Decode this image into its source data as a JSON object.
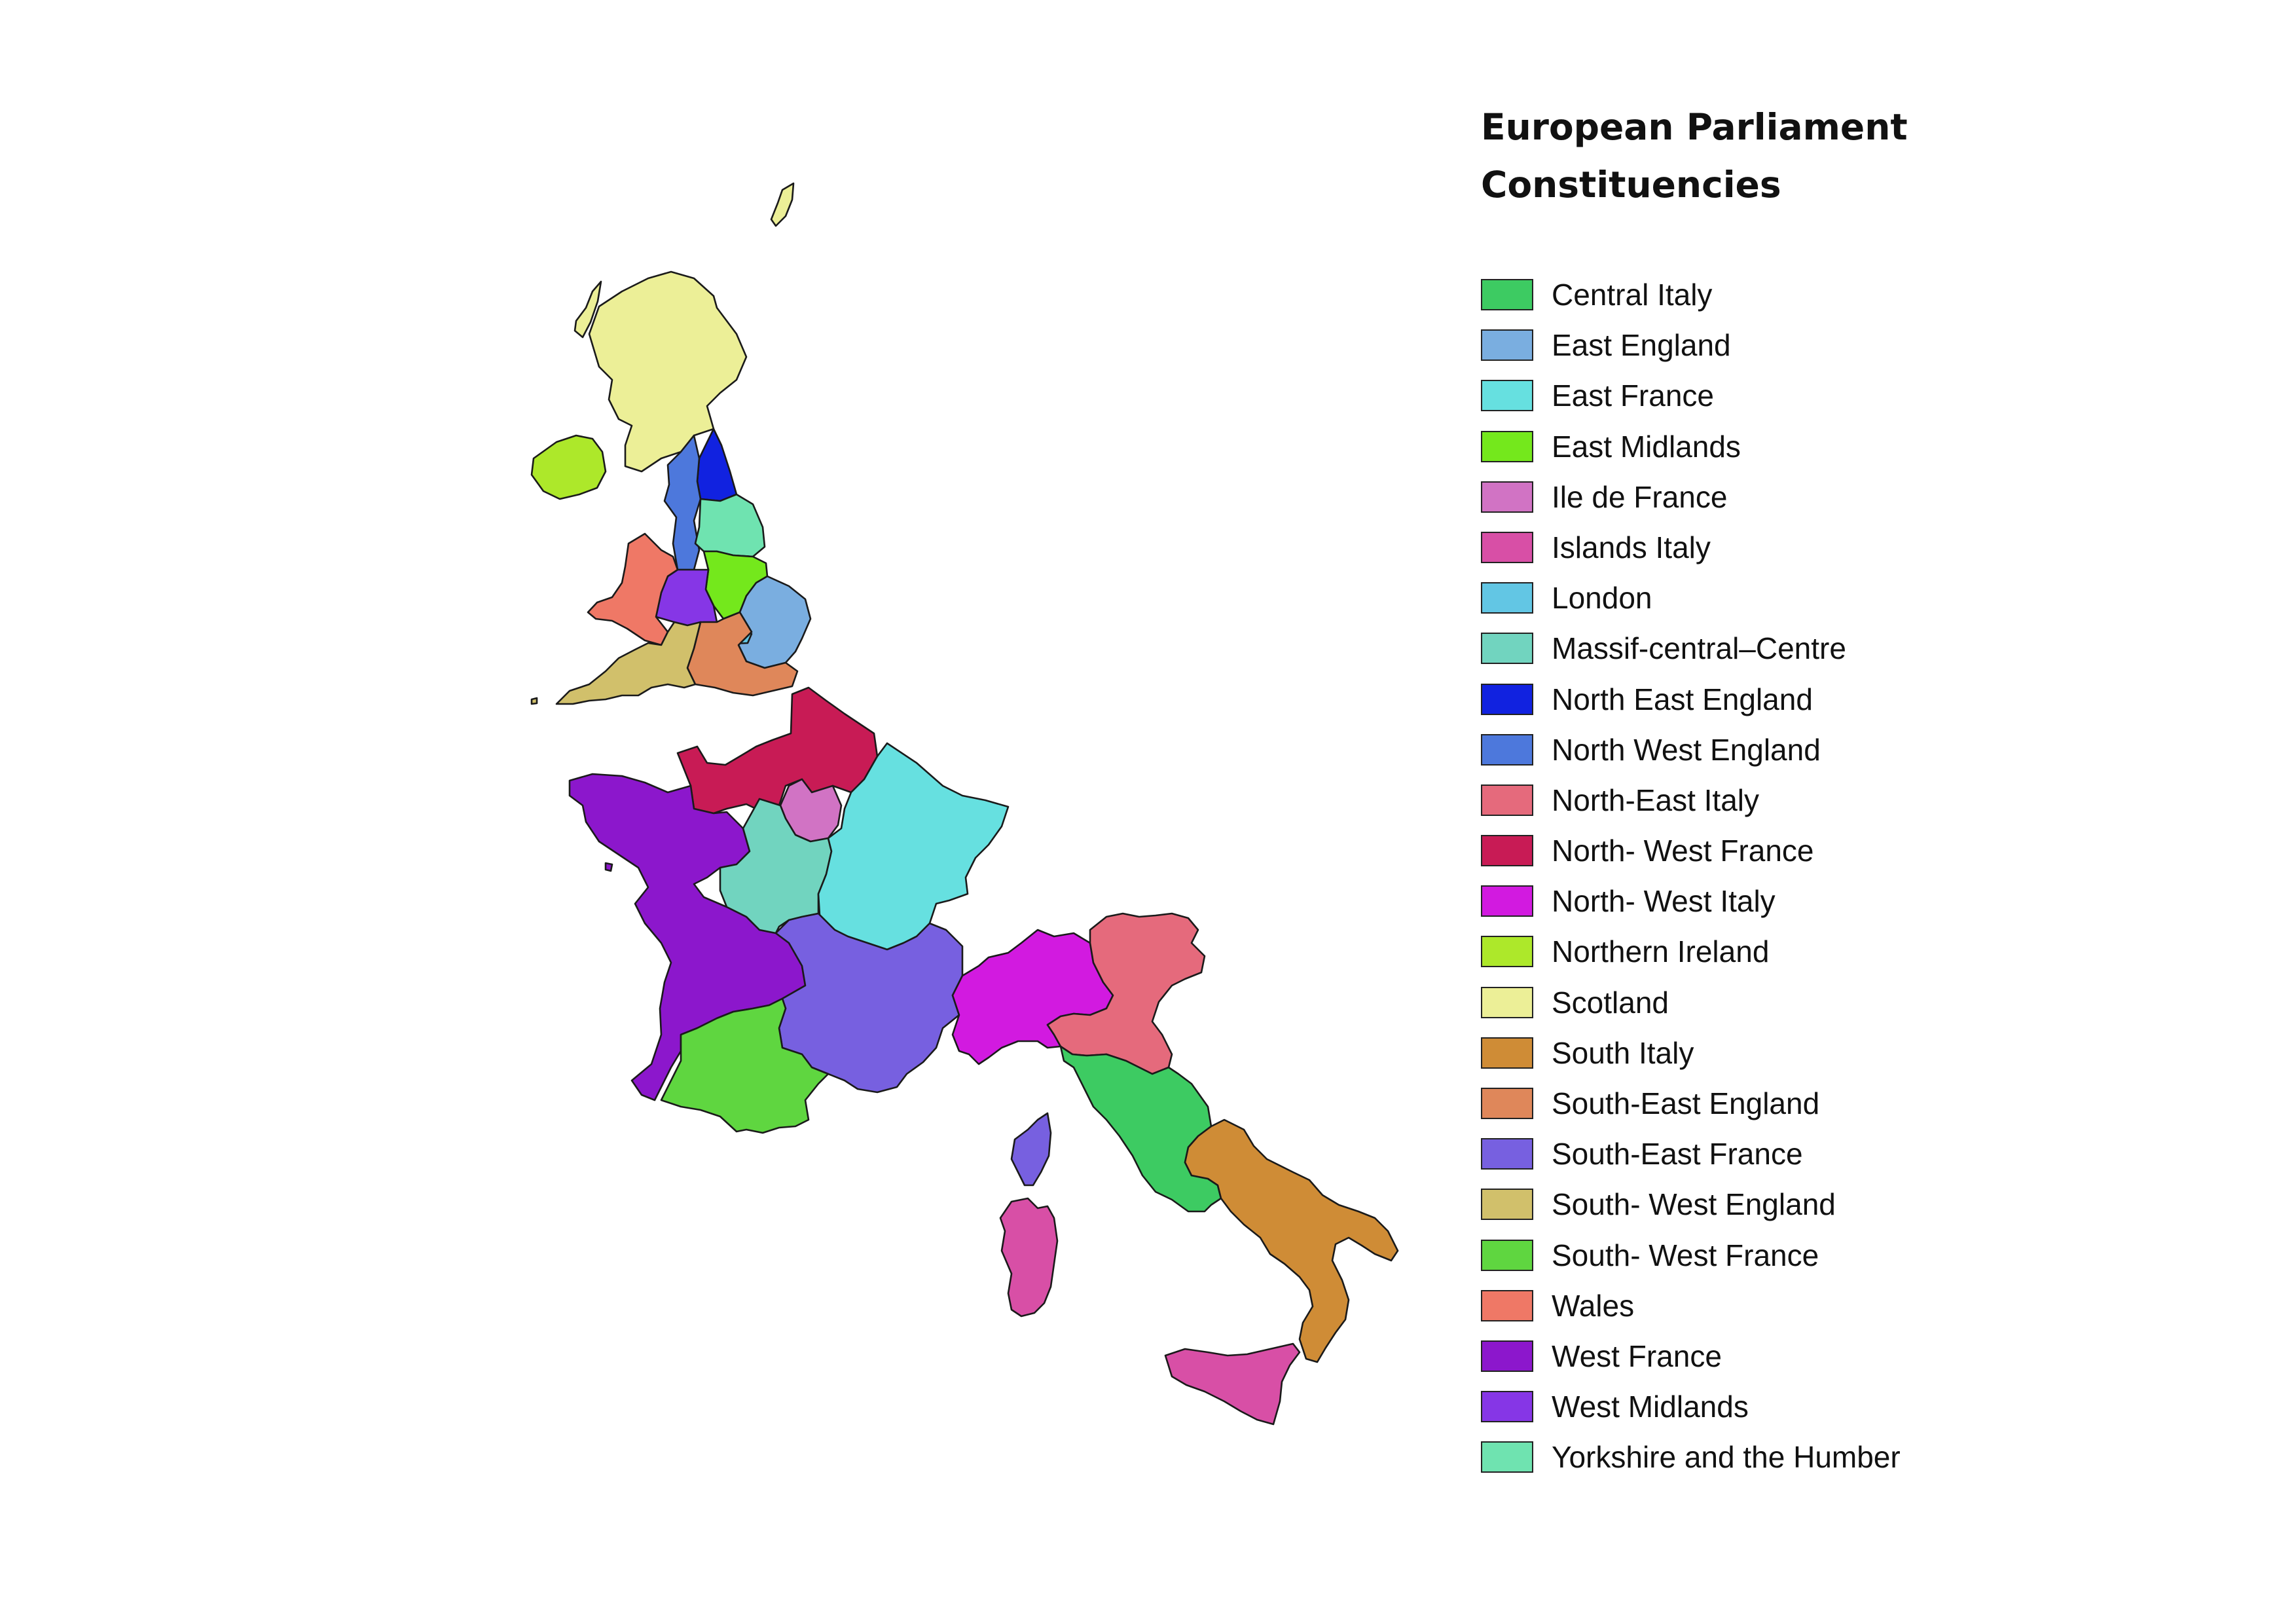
{
  "title_lines": [
    "European Parliament",
    "Constituencies"
  ],
  "legend": [
    {
      "label": "Central Italy",
      "color": "#3dcb62"
    },
    {
      "label": "East England",
      "color": "#7aaee0"
    },
    {
      "label": "East France",
      "color": "#66e0e0"
    },
    {
      "label": "East Midlands",
      "color": "#74e81c"
    },
    {
      "label": "Ile de France",
      "color": "#d173c4"
    },
    {
      "label": "Islands Italy",
      "color": "#d84fa6"
    },
    {
      "label": "London",
      "color": "#62c6e4"
    },
    {
      "label": "Massif-central–Centre",
      "color": "#71d4bf"
    },
    {
      "label": "North East England",
      "color": "#1122e0"
    },
    {
      "label": "North West England",
      "color": "#4d78dc"
    },
    {
      "label": "North-East Italy",
      "color": "#e56a7c"
    },
    {
      "label": "North- West France",
      "color": "#c81b55"
    },
    {
      "label": "North- West Italy",
      "color": "#d21ae0"
    },
    {
      "label": "Northern Ireland",
      "color": "#ade82a"
    },
    {
      "label": "Scotland",
      "color": "#ecef97"
    },
    {
      "label": "South Italy",
      "color": "#cf8c36"
    },
    {
      "label": "South-East England",
      "color": "#df875a"
    },
    {
      "label": "South-East France",
      "color": "#7760e0"
    },
    {
      "label": "South- West England",
      "color": "#d1c06b"
    },
    {
      "label": "South- West France",
      "color": "#5fd640"
    },
    {
      "label": "Wales",
      "color": "#ef7866"
    },
    {
      "label": "West France",
      "color": "#8c17cc"
    },
    {
      "label": "West Midlands",
      "color": "#8636e6"
    },
    {
      "label": "Yorkshire and the Humber",
      "color": "#6fe3b0"
    }
  ]
}
